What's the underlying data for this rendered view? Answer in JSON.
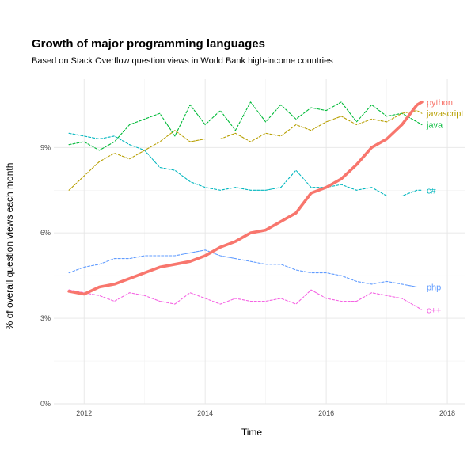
{
  "chart_data": {
    "type": "line",
    "title": "Growth of major programming languages",
    "subtitle": "Based on Stack Overflow question views in World Bank high-income countries",
    "xlabel": "Time",
    "ylabel": "% of overall question views each month",
    "xlim": [
      2011.5,
      2018.3
    ],
    "ylim": [
      0,
      11.4
    ],
    "x_ticks": [
      {
        "value": 2012,
        "label": "2012"
      },
      {
        "value": 2014,
        "label": "2014"
      },
      {
        "value": 2016,
        "label": "2016"
      },
      {
        "value": 2018,
        "label": "2018"
      }
    ],
    "y_ticks": [
      {
        "value": 0,
        "label": "0%"
      },
      {
        "value": 3,
        "label": "3%"
      },
      {
        "value": 6,
        "label": "6%"
      },
      {
        "value": 9,
        "label": "9%"
      }
    ],
    "grid": true,
    "legend": "direct labels at line ends (right)",
    "series": [
      {
        "name": "python",
        "color": "#F8766D",
        "style": "solid",
        "x": [
          2011.75,
          2012.0,
          2012.25,
          2012.5,
          2012.75,
          2013.0,
          2013.25,
          2013.5,
          2013.75,
          2014.0,
          2014.25,
          2014.5,
          2014.75,
          2015.0,
          2015.25,
          2015.5,
          2015.75,
          2016.0,
          2016.25,
          2016.5,
          2016.75,
          2017.0,
          2017.25,
          2017.5,
          2017.58
        ],
        "values": [
          3.95,
          3.85,
          4.1,
          4.2,
          4.4,
          4.6,
          4.8,
          4.9,
          5.0,
          5.2,
          5.5,
          5.7,
          6.0,
          6.1,
          6.4,
          6.7,
          7.4,
          7.6,
          7.9,
          8.4,
          9.0,
          9.3,
          9.8,
          10.5,
          10.6
        ]
      },
      {
        "name": "javascript",
        "color": "#B79F00",
        "style": "dashed",
        "x": [
          2011.75,
          2012.0,
          2012.25,
          2012.5,
          2012.75,
          2013.0,
          2013.25,
          2013.5,
          2013.75,
          2014.0,
          2014.25,
          2014.5,
          2014.75,
          2015.0,
          2015.25,
          2015.5,
          2015.75,
          2016.0,
          2016.25,
          2016.5,
          2016.75,
          2017.0,
          2017.25,
          2017.5,
          2017.58
        ],
        "values": [
          7.5,
          8.0,
          8.5,
          8.8,
          8.6,
          8.9,
          9.2,
          9.6,
          9.2,
          9.3,
          9.3,
          9.5,
          9.2,
          9.5,
          9.4,
          9.8,
          9.6,
          9.9,
          10.1,
          9.8,
          10.0,
          9.9,
          10.2,
          10.3,
          10.2
        ]
      },
      {
        "name": "java",
        "color": "#00BA38",
        "style": "dashed",
        "x": [
          2011.75,
          2012.0,
          2012.25,
          2012.5,
          2012.75,
          2013.0,
          2013.25,
          2013.5,
          2013.75,
          2014.0,
          2014.25,
          2014.5,
          2014.75,
          2015.0,
          2015.25,
          2015.5,
          2015.75,
          2016.0,
          2016.25,
          2016.5,
          2016.75,
          2017.0,
          2017.25,
          2017.5,
          2017.58
        ],
        "values": [
          9.1,
          9.2,
          8.9,
          9.2,
          9.8,
          10.0,
          10.2,
          9.4,
          10.5,
          9.8,
          10.3,
          9.6,
          10.6,
          9.9,
          10.5,
          10.0,
          10.4,
          10.3,
          10.6,
          9.9,
          10.5,
          10.1,
          10.2,
          9.9,
          9.8
        ]
      },
      {
        "name": "c#",
        "color": "#00B6BE",
        "style": "dashed",
        "x": [
          2011.75,
          2012.0,
          2012.25,
          2012.5,
          2012.75,
          2013.0,
          2013.25,
          2013.5,
          2013.75,
          2014.0,
          2014.25,
          2014.5,
          2014.75,
          2015.0,
          2015.25,
          2015.5,
          2015.75,
          2016.0,
          2016.25,
          2016.5,
          2016.75,
          2017.0,
          2017.25,
          2017.5,
          2017.58
        ],
        "values": [
          9.5,
          9.4,
          9.3,
          9.4,
          9.1,
          8.9,
          8.3,
          8.2,
          7.8,
          7.6,
          7.5,
          7.6,
          7.5,
          7.5,
          7.6,
          8.2,
          7.6,
          7.6,
          7.7,
          7.5,
          7.6,
          7.3,
          7.3,
          7.5,
          7.5
        ]
      },
      {
        "name": "php",
        "color": "#619CFF",
        "style": "dashed",
        "x": [
          2011.75,
          2012.0,
          2012.25,
          2012.5,
          2012.75,
          2013.0,
          2013.25,
          2013.5,
          2013.75,
          2014.0,
          2014.25,
          2014.5,
          2014.75,
          2015.0,
          2015.25,
          2015.5,
          2015.75,
          2016.0,
          2016.25,
          2016.5,
          2016.75,
          2017.0,
          2017.25,
          2017.5,
          2017.58
        ],
        "values": [
          4.6,
          4.8,
          4.9,
          5.1,
          5.1,
          5.2,
          5.2,
          5.2,
          5.3,
          5.4,
          5.2,
          5.1,
          5.0,
          4.9,
          4.9,
          4.7,
          4.6,
          4.6,
          4.5,
          4.3,
          4.2,
          4.3,
          4.2,
          4.1,
          4.1
        ]
      },
      {
        "name": "c++",
        "color": "#F564E3",
        "style": "dashed",
        "x": [
          2011.75,
          2012.0,
          2012.25,
          2012.5,
          2012.75,
          2013.0,
          2013.25,
          2013.5,
          2013.75,
          2014.0,
          2014.25,
          2014.5,
          2014.75,
          2015.0,
          2015.25,
          2015.5,
          2015.75,
          2016.0,
          2016.25,
          2016.5,
          2016.75,
          2017.0,
          2017.25,
          2017.5,
          2017.58
        ],
        "values": [
          4.0,
          3.9,
          3.8,
          3.6,
          3.9,
          3.8,
          3.6,
          3.5,
          3.9,
          3.7,
          3.5,
          3.7,
          3.6,
          3.6,
          3.7,
          3.5,
          4.0,
          3.7,
          3.6,
          3.6,
          3.9,
          3.8,
          3.7,
          3.4,
          3.3
        ]
      }
    ]
  }
}
